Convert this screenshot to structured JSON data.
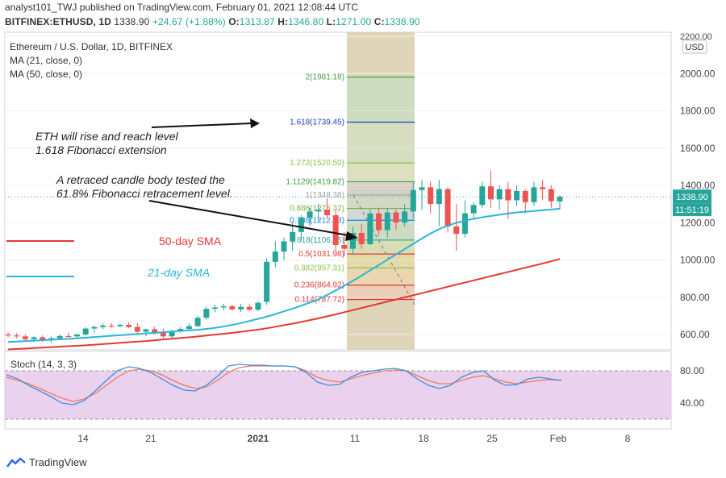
{
  "header": {
    "line1": "analyst101_TWJ published on TradingView.com, February 01, 2021 12:08:44 UTC",
    "symbol": "BITFINEX:ETHUSD, 1D",
    "price": "1338.90",
    "change": "+24.67 (+1.88%)",
    "o_label": "O:",
    "o": "1313.87",
    "h_label": "H:",
    "h": "1346.80",
    "l_label": "L:",
    "l": "1271.00",
    "c_label": "C:",
    "c": "1338.90"
  },
  "legend": {
    "title": "Ethereum / U.S. Dollar, 1D, BITFINEX",
    "ma21": "MA (21, close, 0)",
    "ma50": "MA (50, close, 0)",
    "currency": "USD"
  },
  "annotations": {
    "eth_line1": "ETH will rise and reach level",
    "eth_line2": "1.618 Fibonacci extension",
    "retrace_line1": "A retraced candle body tested the",
    "retrace_line2": "61.8% Fibonacci retracement level.",
    "sma50": "50-day SMA",
    "sma21": "21-day SMA"
  },
  "price_badges": {
    "last": "1338.90",
    "countdown": "11:51:19"
  },
  "stoch": {
    "label": "Stoch (14, 3, 3)"
  },
  "brand": "TradingView",
  "colors": {
    "up": "#26a69a",
    "down": "#ef5350",
    "ma21": "#29b6d8",
    "ma50": "#e53935",
    "stoch_k": "#3d8fe0",
    "stoch_d": "#f07b5a",
    "stoch_bg": "#e1bee7",
    "fib_range_bg": "#d6c7a1"
  },
  "chart_data": {
    "type": "candlestick",
    "title": "Ethereum / U.S. Dollar, 1D, BITFINEX",
    "price_axis": {
      "ticks": [
        600,
        800,
        1000,
        1200,
        1400,
        1600,
        1800,
        2000,
        2200
      ],
      "tick_labels": [
        "600.00",
        "800.00",
        "1000.00",
        "1200.00",
        "1400.00",
        "1600.00",
        "1800.00",
        "2000.00",
        "2200.00"
      ],
      "range": [
        520,
        2200
      ]
    },
    "time_axis": {
      "labels": [
        "14",
        "21",
        "2021",
        "11",
        "18",
        "25",
        "Feb",
        "8"
      ]
    },
    "fibonacci": [
      {
        "level": "0.114",
        "price": 787.72,
        "color": "#e53935"
      },
      {
        "level": "0.236",
        "price": 864.92,
        "color": "#e53935"
      },
      {
        "level": "0.382",
        "price": 957.31,
        "color": "#8bc34a"
      },
      {
        "level": "0.5",
        "price": 1031.98,
        "color": "#e53935"
      },
      {
        "level": "0.618",
        "price": 1106.65,
        "color": "#26a69a"
      },
      {
        "level": "0.786",
        "price": 1212.93,
        "color": "#1e88e5"
      },
      {
        "level": "0.886",
        "price": 1276.32,
        "color": "#7cb342"
      },
      {
        "level": "1",
        "price": 1348.38,
        "color": "#9e9e9e"
      },
      {
        "level": "1.1129",
        "price": 1419.82,
        "color": "#43a047"
      },
      {
        "level": "1.272",
        "price": 1520.5,
        "color": "#8bc34a"
      },
      {
        "level": "1.618",
        "price": 1739.45,
        "color": "#1e3fc2"
      },
      {
        "level": "2",
        "price": 1981.18,
        "color": "#43a047"
      }
    ],
    "candles": [
      {
        "o": 600,
        "h": 612,
        "l": 585,
        "c": 595
      },
      {
        "o": 595,
        "h": 608,
        "l": 580,
        "c": 590
      },
      {
        "o": 590,
        "h": 600,
        "l": 565,
        "c": 575
      },
      {
        "o": 575,
        "h": 590,
        "l": 560,
        "c": 585
      },
      {
        "o": 585,
        "h": 595,
        "l": 560,
        "c": 570
      },
      {
        "o": 570,
        "h": 590,
        "l": 555,
        "c": 580
      },
      {
        "o": 580,
        "h": 600,
        "l": 570,
        "c": 592
      },
      {
        "o": 592,
        "h": 610,
        "l": 585,
        "c": 590
      },
      {
        "o": 590,
        "h": 605,
        "l": 580,
        "c": 600
      },
      {
        "o": 600,
        "h": 640,
        "l": 595,
        "c": 632
      },
      {
        "o": 632,
        "h": 650,
        "l": 610,
        "c": 640
      },
      {
        "o": 640,
        "h": 660,
        "l": 630,
        "c": 648
      },
      {
        "o": 648,
        "h": 660,
        "l": 636,
        "c": 645
      },
      {
        "o": 645,
        "h": 660,
        "l": 640,
        "c": 652
      },
      {
        "o": 652,
        "h": 665,
        "l": 635,
        "c": 640
      },
      {
        "o": 640,
        "h": 660,
        "l": 600,
        "c": 615
      },
      {
        "o": 615,
        "h": 632,
        "l": 590,
        "c": 628
      },
      {
        "o": 628,
        "h": 640,
        "l": 600,
        "c": 610
      },
      {
        "o": 610,
        "h": 632,
        "l": 580,
        "c": 590
      },
      {
        "o": 590,
        "h": 625,
        "l": 580,
        "c": 618
      },
      {
        "o": 618,
        "h": 640,
        "l": 610,
        "c": 630
      },
      {
        "o": 630,
        "h": 660,
        "l": 620,
        "c": 645
      },
      {
        "o": 645,
        "h": 700,
        "l": 640,
        "c": 690
      },
      {
        "o": 690,
        "h": 750,
        "l": 680,
        "c": 738
      },
      {
        "o": 738,
        "h": 760,
        "l": 720,
        "c": 745
      },
      {
        "o": 745,
        "h": 765,
        "l": 730,
        "c": 752
      },
      {
        "o": 752,
        "h": 760,
        "l": 728,
        "c": 735
      },
      {
        "o": 735,
        "h": 765,
        "l": 720,
        "c": 748
      },
      {
        "o": 748,
        "h": 762,
        "l": 725,
        "c": 733
      },
      {
        "o": 733,
        "h": 780,
        "l": 725,
        "c": 770
      },
      {
        "o": 775,
        "h": 1010,
        "l": 760,
        "c": 990
      },
      {
        "o": 990,
        "h": 1100,
        "l": 960,
        "c": 1045
      },
      {
        "o": 1045,
        "h": 1120,
        "l": 1000,
        "c": 1100
      },
      {
        "o": 1100,
        "h": 1200,
        "l": 1050,
        "c": 1150
      },
      {
        "o": 1150,
        "h": 1240,
        "l": 1100,
        "c": 1225
      },
      {
        "o": 1225,
        "h": 1280,
        "l": 1180,
        "c": 1260
      },
      {
        "o": 1260,
        "h": 1300,
        "l": 1210,
        "c": 1270
      },
      {
        "o": 1270,
        "h": 1330,
        "l": 1220,
        "c": 1240
      },
      {
        "o": 1240,
        "h": 1265,
        "l": 1050,
        "c": 1080
      },
      {
        "o": 1080,
        "h": 1150,
        "l": 1020,
        "c": 1060
      },
      {
        "o": 1060,
        "h": 1180,
        "l": 1030,
        "c": 1145
      },
      {
        "o": 1145,
        "h": 1190,
        "l": 1060,
        "c": 1085
      },
      {
        "o": 1085,
        "h": 1270,
        "l": 1080,
        "c": 1250
      },
      {
        "o": 1250,
        "h": 1280,
        "l": 1130,
        "c": 1160
      },
      {
        "o": 1160,
        "h": 1280,
        "l": 1120,
        "c": 1255
      },
      {
        "o": 1255,
        "h": 1270,
        "l": 1160,
        "c": 1200
      },
      {
        "o": 1200,
        "h": 1300,
        "l": 1180,
        "c": 1260
      },
      {
        "o": 1260,
        "h": 1420,
        "l": 1220,
        "c": 1375
      },
      {
        "o": 1375,
        "h": 1430,
        "l": 1270,
        "c": 1390
      },
      {
        "o": 1390,
        "h": 1420,
        "l": 1250,
        "c": 1300
      },
      {
        "o": 1300,
        "h": 1430,
        "l": 1180,
        "c": 1380
      },
      {
        "o": 1380,
        "h": 1390,
        "l": 1150,
        "c": 1180
      },
      {
        "o": 1180,
        "h": 1300,
        "l": 1050,
        "c": 1140
      },
      {
        "o": 1140,
        "h": 1320,
        "l": 1120,
        "c": 1250
      },
      {
        "o": 1250,
        "h": 1310,
        "l": 1220,
        "c": 1295
      },
      {
        "o": 1295,
        "h": 1420,
        "l": 1280,
        "c": 1395
      },
      {
        "o": 1395,
        "h": 1480,
        "l": 1280,
        "c": 1325
      },
      {
        "o": 1325,
        "h": 1400,
        "l": 1270,
        "c": 1380
      },
      {
        "o": 1380,
        "h": 1420,
        "l": 1220,
        "c": 1320
      },
      {
        "o": 1320,
        "h": 1400,
        "l": 1290,
        "c": 1370
      },
      {
        "o": 1370,
        "h": 1380,
        "l": 1250,
        "c": 1310
      },
      {
        "o": 1310,
        "h": 1420,
        "l": 1290,
        "c": 1390
      },
      {
        "o": 1390,
        "h": 1430,
        "l": 1320,
        "c": 1380
      },
      {
        "o": 1380,
        "h": 1400,
        "l": 1280,
        "c": 1315
      },
      {
        "o": 1313.87,
        "h": 1346.8,
        "l": 1271,
        "c": 1338.9
      }
    ],
    "ma21": [
      560,
      563,
      566,
      569,
      572,
      575,
      578,
      582,
      586,
      590,
      594,
      598,
      602,
      606,
      610,
      614,
      618,
      622,
      626,
      632,
      640,
      650,
      662,
      676,
      690,
      706,
      724,
      742,
      762,
      782,
      810,
      840,
      872,
      905,
      940,
      975,
      1010,
      1045,
      1080,
      1115,
      1148,
      1175,
      1195,
      1210,
      1222,
      1232,
      1240,
      1248,
      1255,
      1260,
      1265,
      1270,
      1275
    ],
    "ma50": [
      520,
      523,
      526,
      529,
      532,
      535,
      538,
      541,
      545,
      549,
      553,
      557,
      561,
      565,
      570,
      575,
      580,
      585,
      590,
      596,
      602,
      608,
      615,
      622,
      630,
      640,
      650,
      660,
      672,
      684,
      697,
      710,
      724,
      738,
      752,
      766,
      780,
      794,
      808,
      822,
      836,
      850,
      864,
      878,
      892,
      906,
      920,
      934,
      948,
      962,
      976,
      990,
      1005
    ],
    "stochastic": {
      "k": [
        75,
        70,
        62,
        55,
        48,
        40,
        38,
        43,
        55,
        68,
        80,
        85,
        83,
        78,
        70,
        62,
        56,
        55,
        62,
        73,
        86,
        88,
        87,
        87,
        86,
        86,
        85,
        78,
        66,
        62,
        63,
        72,
        78,
        80,
        82,
        83,
        80,
        70,
        62,
        58,
        62,
        72,
        78,
        80,
        68,
        62,
        63,
        70,
        72,
        70,
        68
      ],
      "d": [
        72,
        68,
        64,
        58,
        52,
        46,
        42,
        45,
        52,
        62,
        72,
        80,
        82,
        80,
        75,
        68,
        62,
        58,
        60,
        68,
        78,
        84,
        86,
        86,
        86,
        86,
        85,
        80,
        72,
        68,
        66,
        70,
        74,
        77,
        80,
        81,
        80,
        74,
        68,
        64,
        64,
        68,
        72,
        74,
        70,
        66,
        64,
        66,
        68,
        69,
        68
      ]
    }
  }
}
